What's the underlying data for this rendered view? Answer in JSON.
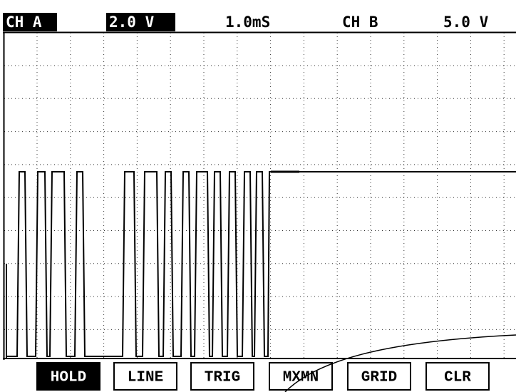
{
  "header": {
    "ch_a": "CH A",
    "ch_a_scale": "2.0 V",
    "timebase": "1.0mS",
    "ch_b": "CH B",
    "ch_b_scale": "5.0 V"
  },
  "buttons": [
    "HOLD",
    "LINE",
    "TRIG",
    "MXMN",
    "GRID",
    "CLR"
  ]
}
